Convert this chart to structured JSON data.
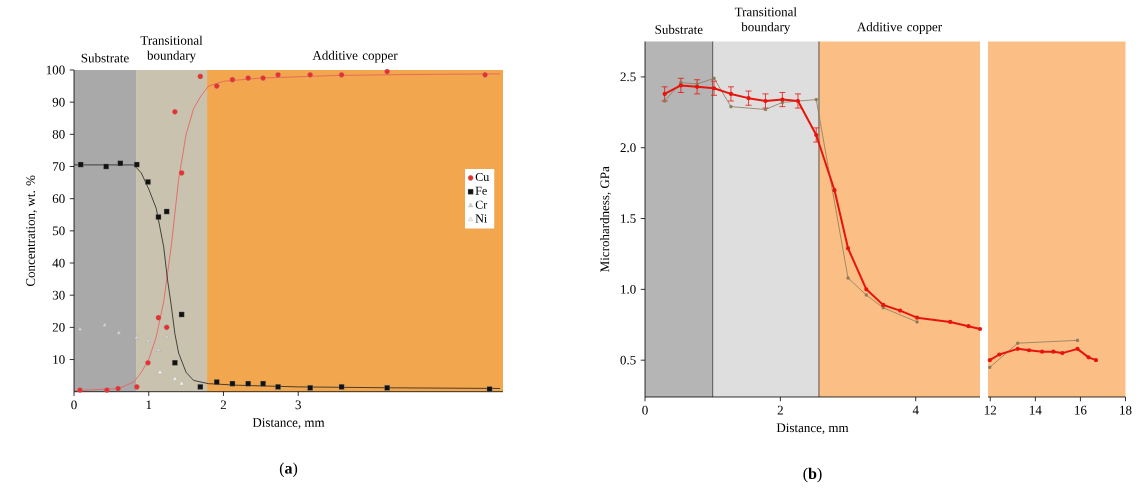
{
  "chart_data": [
    {
      "type": "scatter",
      "xlabel": "Distance, mm",
      "ylabel": "Concentration, wt. %",
      "xlim": [
        0,
        5.74
      ],
      "ylim": [
        0,
        100
      ],
      "xticks": [
        0,
        1,
        2,
        3
      ],
      "yticks": [
        10,
        20,
        30,
        40,
        50,
        60,
        70,
        80,
        90,
        100
      ],
      "legend": "right",
      "bands": [
        {
          "axis": "x",
          "from": 0,
          "to": 0.83,
          "label": "Substrate",
          "color": "#a9a9a9"
        },
        {
          "axis": "x",
          "from": 0.83,
          "to": 1.78,
          "label": "Transitional boundary",
          "color": "#c9c2ae"
        },
        {
          "axis": "x",
          "from": 1.78,
          "to": 5.74,
          "label": "Additive copper",
          "color": "#f2a74e"
        }
      ],
      "annotations": [
        "(**a**)"
      ],
      "series": [
        {
          "type": "line",
          "marker": "none",
          "color": "#e85a5a",
          "x": [
            0,
            0.6,
            0.8,
            0.9,
            1.0,
            1.1,
            1.2,
            1.3,
            1.4,
            1.5,
            1.6,
            1.7,
            1.8,
            2.0,
            2.5,
            3.5,
            4.5,
            5.7
          ],
          "values": [
            0.3,
            1,
            3,
            6,
            10,
            17,
            28,
            45,
            66,
            80,
            88,
            92,
            95,
            96.5,
            97.5,
            98.3,
            98.6,
            98.8
          ]
        },
        {
          "type": "line",
          "marker": "none",
          "color": "#222222",
          "x": [
            0,
            0.8,
            0.9,
            1.0,
            1.1,
            1.2,
            1.25,
            1.3,
            1.35,
            1.4,
            1.5,
            1.6,
            1.8,
            2.2,
            3,
            4.3,
            5.7
          ],
          "values": [
            70.5,
            70.5,
            68,
            63,
            57,
            45,
            35,
            27,
            18,
            12,
            6,
            3.5,
            2.5,
            2,
            1.5,
            1.2,
            1
          ]
        },
        {
          "name": "Cu",
          "marker": "circle",
          "color": "#e83030",
          "x": [
            0.08,
            0.44,
            0.59,
            0.84,
            0.99,
            1.13,
            1.24,
            1.35,
            1.44,
            1.69,
            1.91,
            2.12,
            2.33,
            2.53,
            2.73,
            3.16,
            3.58,
            4.19,
            5.5
          ],
          "values": [
            0.5,
            0.5,
            1,
            1.5,
            9,
            23,
            20,
            87,
            68,
            98,
            95,
            97,
            97.5,
            97.5,
            98.5,
            98.5,
            98.5,
            99.5,
            98.5
          ]
        },
        {
          "name": "Fe",
          "marker": "square",
          "color": "#111111",
          "x": [
            0.09,
            0.43,
            0.62,
            0.84,
            0.99,
            1.13,
            1.24,
            1.35,
            1.44,
            1.69,
            1.91,
            2.12,
            2.33,
            2.53,
            2.73,
            3.16,
            3.58,
            4.19,
            5.56
          ],
          "values": [
            70.6,
            70,
            71,
            70.6,
            65.2,
            54.3,
            56,
            9,
            24,
            1.5,
            3,
            2.5,
            2.5,
            2.5,
            1.5,
            1.2,
            1.5,
            1.2,
            0.8
          ]
        },
        {
          "name": "Cr",
          "marker": "triangle",
          "color": "#d4d4d4",
          "x": [
            0.08,
            0.41,
            0.6,
            0.84,
            0.99,
            1.13,
            1.24
          ],
          "values": [
            19.4,
            20.7,
            18.3,
            16.8,
            15.8,
            12.9,
            17
          ]
        },
        {
          "name": "Ni",
          "marker": "triangle",
          "color": "#f4f4f4",
          "x": [
            1.15,
            1.35,
            1.44
          ],
          "values": [
            6,
            4,
            2.5
          ]
        }
      ]
    },
    {
      "type": "line",
      "xlabel": "Distance, mm",
      "ylabel": "Microhardness, GPa",
      "xlim": [
        0,
        4.95
      ],
      "ylim": [
        0.24,
        2.75
      ],
      "xticks": [
        0,
        2,
        4
      ],
      "yticks": [
        0.5,
        {
          "value": 1,
          "label": "1.0"
        },
        1.5,
        {
          "value": 2,
          "label": "2.0"
        },
        2.5
      ],
      "bands": [
        {
          "axis": "x",
          "from": 0,
          "to": 1.0,
          "label": "Substrate",
          "color": "#b5b5b5"
        },
        {
          "axis": "x",
          "from": 1.0,
          "to": 2.57,
          "label": "Transitional boundary",
          "color": "#dedede"
        },
        {
          "axis": "x",
          "from": 2.57,
          "to": 4.95,
          "label": "Additive copper",
          "color": "#fbbf86"
        }
      ],
      "ref_lines": [
        {
          "axis": "x",
          "value": 1.0,
          "color": "#333333"
        },
        {
          "axis": "x",
          "value": 2.57,
          "color": "#333333"
        }
      ],
      "annotations": [
        "(**b**)"
      ],
      "series": [
        {
          "marker": "square",
          "color": "#8c7a5a",
          "x": [
            0.29,
            0.53,
            0.77,
            1.02,
            1.27,
            1.53,
            1.78,
            2.03,
            2.26,
            2.53,
            3.0,
            3.27,
            3.52,
            3.77,
            4.02
          ],
          "values": [
            2.33,
            2.46,
            2.45,
            2.49,
            2.29,
            null,
            2.27,
            2.32,
            null,
            2.34,
            1.08,
            0.96,
            0.87,
            null,
            0.77
          ]
        },
        {
          "marker": "circle",
          "color": "#e8140c",
          "x": [
            0.29,
            0.53,
            0.77,
            1.02,
            1.27,
            1.53,
            1.78,
            2.03,
            2.26,
            2.53,
            2.8,
            3.0,
            3.27,
            3.52,
            3.77,
            4.02,
            4.51,
            4.78,
            4.95
          ],
          "values": [
            2.38,
            2.44,
            2.43,
            2.42,
            2.38,
            2.35,
            2.33,
            2.34,
            2.33,
            2.09,
            1.7,
            1.29,
            1.0,
            0.89,
            0.85,
            0.8,
            0.77,
            0.74,
            0.72
          ],
          "errors": [
            0.05,
            0.05,
            0.05,
            0.05,
            0.05,
            0.05,
            0.05,
            0.05,
            0.05,
            0.05,
            null,
            null,
            null,
            null,
            null,
            null,
            null,
            null,
            null
          ]
        }
      ]
    },
    {
      "type": "line",
      "xlim": [
        11.9,
        18
      ],
      "ylim": [
        0.24,
        2.75
      ],
      "xticks": [
        12,
        14,
        16,
        18
      ],
      "tick_labels": "x",
      "bands": [
        {
          "axis": "x",
          "from": 11.9,
          "to": 18,
          "color": "#fbbf86"
        }
      ],
      "series": [
        {
          "marker": "square",
          "color": "#8c7a5a",
          "x": [
            11.98,
            13.22,
            15.87
          ],
          "values": [
            0.45,
            0.62,
            0.64
          ]
        },
        {
          "marker": "circle",
          "color": "#e8140c",
          "x": [
            11.98,
            12.4,
            13.22,
            13.72,
            14.3,
            14.8,
            15.2,
            15.87,
            16.36,
            16.69
          ],
          "values": [
            0.5,
            0.54,
            0.58,
            0.57,
            0.56,
            0.56,
            0.55,
            0.58,
            0.52,
            0.5
          ]
        }
      ]
    }
  ]
}
